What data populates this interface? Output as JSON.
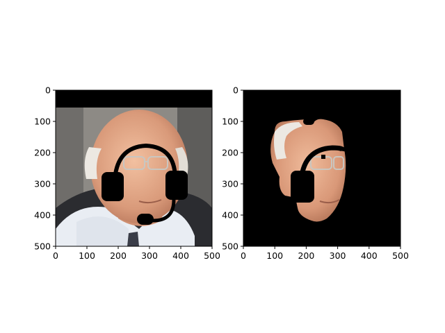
{
  "chart_data": [
    {
      "type": "image",
      "title": "",
      "xlabel": "",
      "ylabel": "",
      "xlim": [
        0,
        500
      ],
      "ylim": [
        500,
        0
      ],
      "xticks": [
        "0",
        "100",
        "200",
        "300",
        "400",
        "500"
      ],
      "yticks": [
        "0",
        "100",
        "200",
        "300",
        "400",
        "500"
      ],
      "content": "photo of a man with a headset icon drawn over his face"
    },
    {
      "type": "image",
      "title": "",
      "xlabel": "",
      "ylabel": "",
      "xlim": [
        0,
        500
      ],
      "ylim": [
        500,
        0
      ],
      "xticks": [
        "0",
        "100",
        "200",
        "300",
        "400",
        "500"
      ],
      "yticks": [
        "0",
        "100",
        "200",
        "300",
        "400",
        "500"
      ],
      "content": "face segmentation mask on black background with headset cut out"
    }
  ],
  "colors": {
    "mask_black": "#000000",
    "skin": "#e2a98a",
    "hair": "#ece8e2",
    "shirt": "#e9edf3",
    "suit": "#2b2c30",
    "background": "#8d8a85",
    "headset": "#000000"
  }
}
